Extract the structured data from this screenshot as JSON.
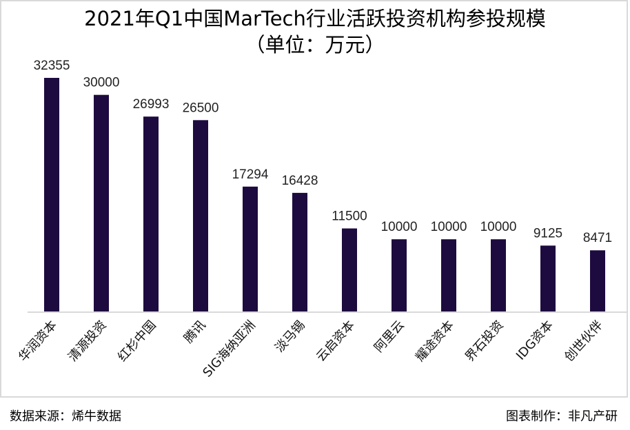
{
  "chart_data": {
    "type": "bar",
    "title": "2021年Q1中国MarTech行业活跃投资机构参投规模",
    "subtitle": "（单位：万元）",
    "categories": [
      "华润资本",
      "清源投资",
      "红杉中国",
      "腾讯",
      "SIG海纳亚洲",
      "淡马锡",
      "云启资本",
      "阿里云",
      "耀途资本",
      "界石投资",
      "IDG资本",
      "创世伙伴"
    ],
    "values": [
      32355,
      30000,
      26993,
      26500,
      17294,
      16428,
      11500,
      10000,
      10000,
      10000,
      9125,
      8471
    ],
    "ylim": [
      0,
      32355
    ],
    "grid": false,
    "bar_color": "#1d0b3f"
  },
  "footer": {
    "source": "数据来源：烯牛数据",
    "credit": "图表制作：非凡产研"
  }
}
